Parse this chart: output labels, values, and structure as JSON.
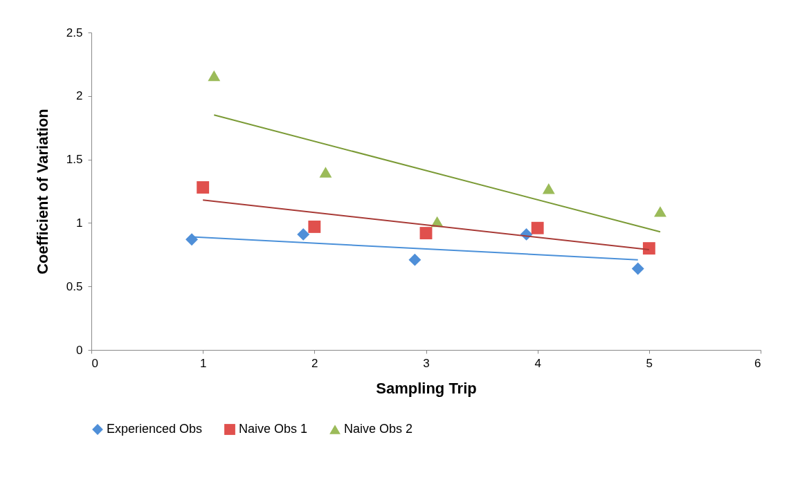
{
  "chart_data": {
    "type": "scatter",
    "xlabel": "Sampling Trip",
    "ylabel": "Coefficient of Variation",
    "xlim": [
      0,
      6
    ],
    "xticks": [
      0,
      1,
      2,
      3,
      4,
      5,
      6
    ],
    "ylim": [
      0,
      2.5
    ],
    "yticks": [
      0,
      0.5,
      1,
      1.5,
      2,
      2.5
    ],
    "grid": false,
    "legend": "bottom",
    "series": [
      {
        "name": "Experienced Obs",
        "color": "#4f8fd8",
        "marker": "diamond",
        "x": [
          0.9,
          1.9,
          2.9,
          3.9,
          4.9
        ],
        "values": [
          0.87,
          0.91,
          0.71,
          0.91,
          0.64
        ]
      },
      {
        "name": "Naive Obs 1",
        "color": "#e0504d",
        "marker": "square",
        "x": [
          1,
          2,
          3,
          4,
          5
        ],
        "values": [
          1.28,
          0.97,
          0.92,
          0.96,
          0.8
        ]
      },
      {
        "name": "Naive Obs 2",
        "color": "#9bbb59",
        "marker": "triangle",
        "x": [
          1.1,
          2.1,
          3.1,
          4.1,
          5.1
        ],
        "values": [
          2.16,
          1.4,
          1.01,
          1.27,
          1.09
        ]
      },
      {
        "type": "line",
        "color": "#4a90d9",
        "x": [
          0.9,
          4.9
        ],
        "values": [
          0.89,
          0.71
        ]
      },
      {
        "type": "line",
        "color": "#a83a36",
        "x": [
          1,
          5
        ],
        "values": [
          1.18,
          0.79
        ]
      },
      {
        "type": "line",
        "color": "#7a9a35",
        "x": [
          1.1,
          5.1
        ],
        "values": [
          1.85,
          0.93
        ]
      }
    ]
  }
}
